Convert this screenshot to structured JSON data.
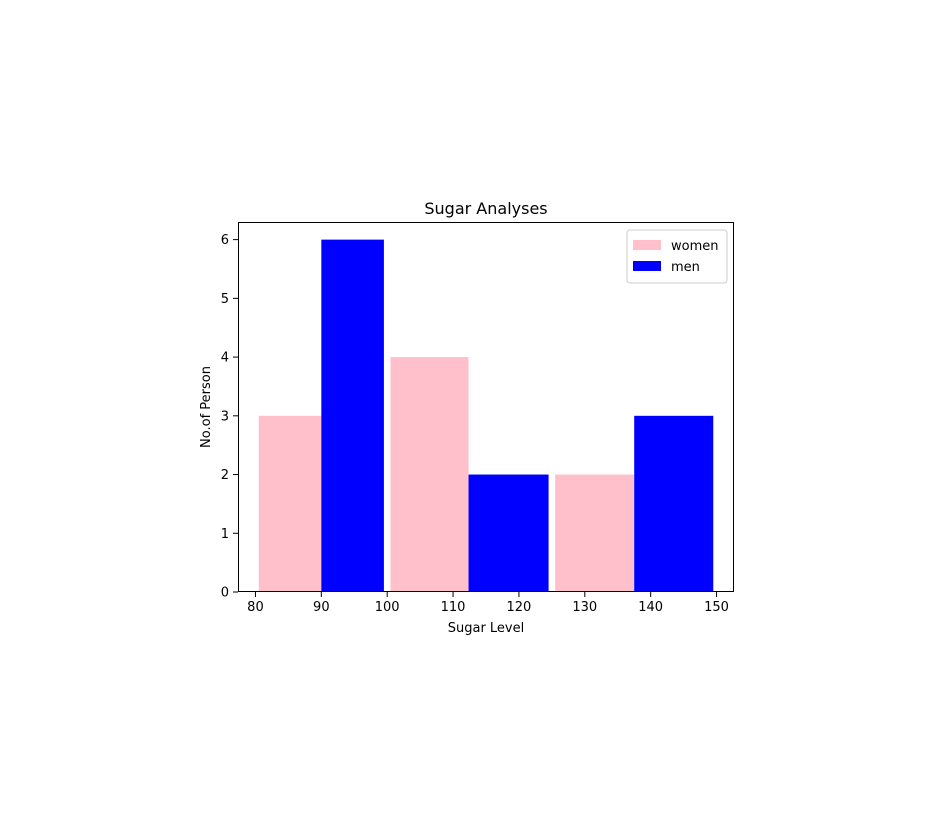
{
  "chart_data": {
    "type": "bar",
    "title": "Sugar Analyses",
    "xlabel": "Sugar Level",
    "ylabel": "No.of Person",
    "xlim": [
      77.35,
      152.65
    ],
    "ylim": [
      0,
      6.3
    ],
    "x_ticks": [
      80,
      90,
      100,
      110,
      120,
      130,
      140,
      150
    ],
    "y_ticks": [
      0,
      1,
      2,
      3,
      4,
      5,
      6
    ],
    "grid": false,
    "legend_position": "top-right",
    "series": [
      {
        "name": "women",
        "color": "#ffc0cb",
        "bars": [
          {
            "x0": 80.5,
            "x1": 90,
            "value": 3
          },
          {
            "x0": 100.5,
            "x1": 112.35,
            "value": 4
          },
          {
            "x0": 125.5,
            "x1": 137.5,
            "value": 2
          }
        ]
      },
      {
        "name": "men",
        "color": "#0000ff",
        "bars": [
          {
            "x0": 90,
            "x1": 99.5,
            "value": 6
          },
          {
            "x0": 112.35,
            "x1": 124.5,
            "value": 2
          },
          {
            "x0": 137.5,
            "x1": 149.5,
            "value": 3
          }
        ]
      }
    ]
  }
}
